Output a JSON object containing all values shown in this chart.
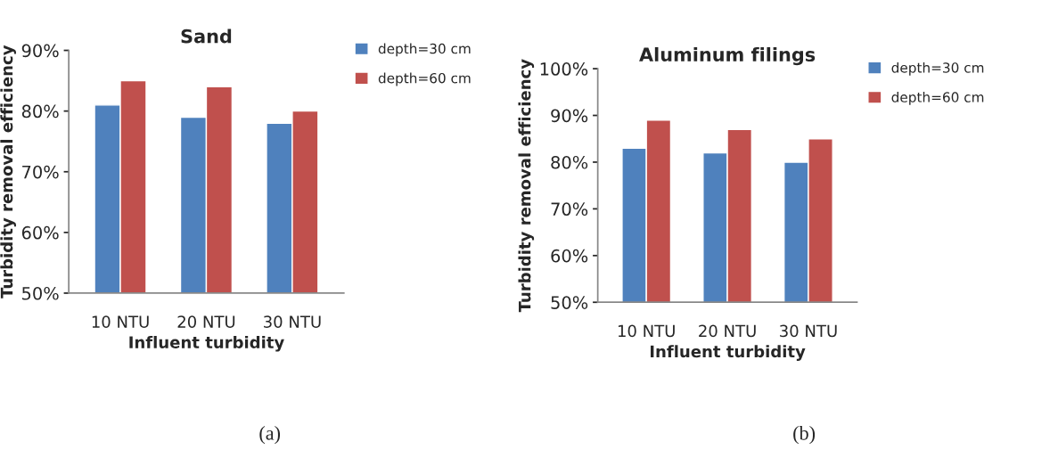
{
  "chart_data": [
    {
      "type": "bar",
      "title": "Sand",
      "xlabel": "Influent turbidity",
      "ylabel": "Turbidity removal efficiency",
      "categories": [
        "10 NTU",
        "20 NTU",
        "30 NTU"
      ],
      "series": [
        {
          "name": "depth=30 cm",
          "color": "#4f81bd",
          "values": [
            81,
            79,
            78
          ]
        },
        {
          "name": "depth=60 cm",
          "color": "#c0504d",
          "values": [
            85,
            84,
            80
          ]
        }
      ],
      "ylim": [
        50,
        90
      ],
      "yticks": [
        {
          "value": 50,
          "label": "50%"
        },
        {
          "value": 60,
          "label": "60%"
        },
        {
          "value": 70,
          "label": "70%"
        },
        {
          "value": 80,
          "label": "80%"
        },
        {
          "value": 90,
          "label": "90%"
        }
      ],
      "grid": false,
      "legend": "right",
      "annotations": [
        "(a)"
      ]
    },
    {
      "type": "bar",
      "title": "Aluminum filings",
      "xlabel": "Influent turbidity",
      "ylabel": "Turbidity removal efficiency",
      "categories": [
        "10 NTU",
        "20 NTU",
        "30 NTU"
      ],
      "series": [
        {
          "name": "depth=30 cm",
          "color": "#4f81bd",
          "values": [
            83,
            82,
            80
          ]
        },
        {
          "name": "depth=60 cm",
          "color": "#c0504d",
          "values": [
            89,
            87,
            85
          ]
        }
      ],
      "ylim": [
        50,
        100
      ],
      "yticks": [
        {
          "value": 50,
          "label": "50%"
        },
        {
          "value": 60,
          "label": "60%"
        },
        {
          "value": 70,
          "label": "70%"
        },
        {
          "value": 80,
          "label": "80%"
        },
        {
          "value": 90,
          "label": "90%"
        },
        {
          "value": 100,
          "label": "100%"
        }
      ],
      "grid": false,
      "legend": "right",
      "annotations": [
        "(b)"
      ]
    }
  ]
}
